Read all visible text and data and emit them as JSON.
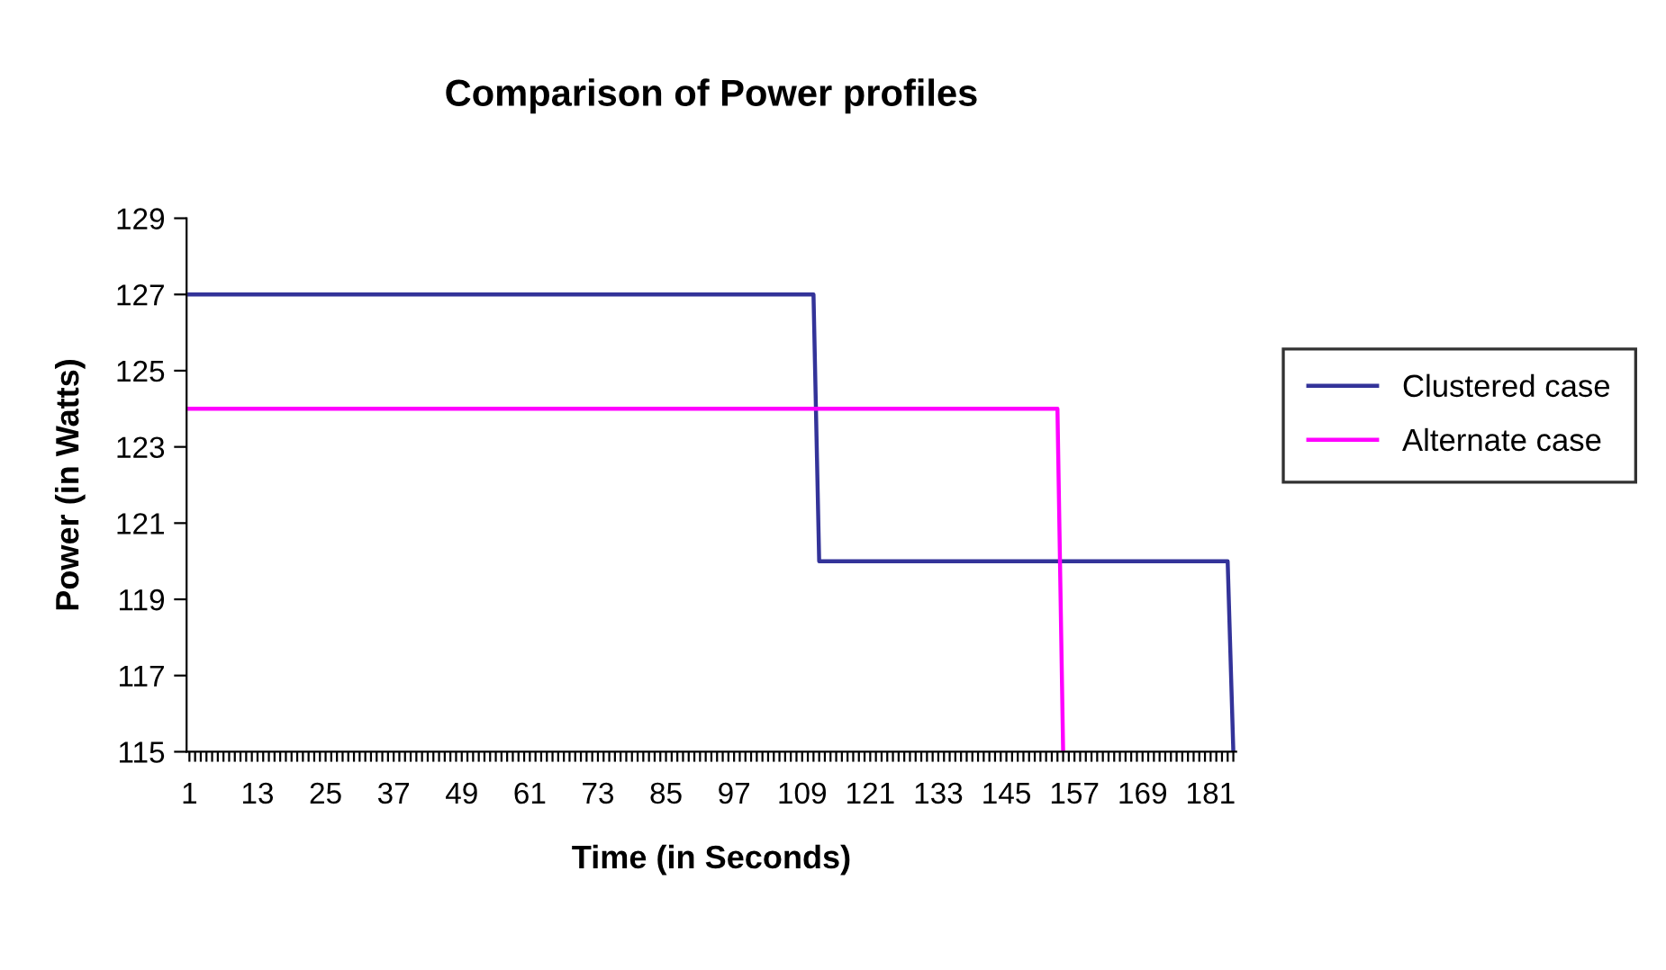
{
  "chart_data": {
    "type": "line",
    "title": "Comparison of Power profiles",
    "xlabel": "Time (in Seconds)",
    "ylabel": "Power (in Watts)",
    "series": [
      {
        "name": "Clustered case",
        "color": "#333399",
        "x": [
          1,
          111,
          112,
          184,
          185
        ],
        "values": [
          127,
          127,
          120,
          120,
          115
        ]
      },
      {
        "name": "Alternate case",
        "color": "#ff00ff",
        "x": [
          1,
          154,
          155
        ],
        "values": [
          124,
          124,
          115
        ]
      }
    ],
    "xlim": [
      0.5,
      185.5
    ],
    "ylim": [
      115,
      129
    ],
    "yticks": [
      115,
      117,
      119,
      121,
      123,
      125,
      127,
      129
    ],
    "xticks": [
      1,
      {
        "value": 2,
        "label": null
      },
      {
        "value": 3,
        "label": null
      },
      {
        "value": 4,
        "label": null
      },
      {
        "value": 5,
        "label": null
      },
      {
        "value": 6,
        "label": null
      },
      {
        "value": 7,
        "label": null
      },
      {
        "value": 8,
        "label": null
      },
      {
        "value": 9,
        "label": null
      },
      {
        "value": 10,
        "label": null
      },
      {
        "value": 11,
        "label": null
      },
      {
        "value": 12,
        "label": null
      },
      13,
      {
        "value": 14,
        "label": null
      },
      {
        "value": 15,
        "label": null
      },
      {
        "value": 16,
        "label": null
      },
      {
        "value": 17,
        "label": null
      },
      {
        "value": 18,
        "label": null
      },
      {
        "value": 19,
        "label": null
      },
      {
        "value": 20,
        "label": null
      },
      {
        "value": 21,
        "label": null
      },
      {
        "value": 22,
        "label": null
      },
      {
        "value": 23,
        "label": null
      },
      {
        "value": 24,
        "label": null
      },
      25,
      {
        "value": 26,
        "label": null
      },
      {
        "value": 27,
        "label": null
      },
      {
        "value": 28,
        "label": null
      },
      {
        "value": 29,
        "label": null
      },
      {
        "value": 30,
        "label": null
      },
      {
        "value": 31,
        "label": null
      },
      {
        "value": 32,
        "label": null
      },
      {
        "value": 33,
        "label": null
      },
      {
        "value": 34,
        "label": null
      },
      {
        "value": 35,
        "label": null
      },
      {
        "value": 36,
        "label": null
      },
      37,
      {
        "value": 38,
        "label": null
      },
      {
        "value": 39,
        "label": null
      },
      {
        "value": 40,
        "label": null
      },
      {
        "value": 41,
        "label": null
      },
      {
        "value": 42,
        "label": null
      },
      {
        "value": 43,
        "label": null
      },
      {
        "value": 44,
        "label": null
      },
      {
        "value": 45,
        "label": null
      },
      {
        "value": 46,
        "label": null
      },
      {
        "value": 47,
        "label": null
      },
      {
        "value": 48,
        "label": null
      },
      49,
      {
        "value": 50,
        "label": null
      },
      {
        "value": 51,
        "label": null
      },
      {
        "value": 52,
        "label": null
      },
      {
        "value": 53,
        "label": null
      },
      {
        "value": 54,
        "label": null
      },
      {
        "value": 55,
        "label": null
      },
      {
        "value": 56,
        "label": null
      },
      {
        "value": 57,
        "label": null
      },
      {
        "value": 58,
        "label": null
      },
      {
        "value": 59,
        "label": null
      },
      {
        "value": 60,
        "label": null
      },
      61,
      {
        "value": 62,
        "label": null
      },
      {
        "value": 63,
        "label": null
      },
      {
        "value": 64,
        "label": null
      },
      {
        "value": 65,
        "label": null
      },
      {
        "value": 66,
        "label": null
      },
      {
        "value": 67,
        "label": null
      },
      {
        "value": 68,
        "label": null
      },
      {
        "value": 69,
        "label": null
      },
      {
        "value": 70,
        "label": null
      },
      {
        "value": 71,
        "label": null
      },
      {
        "value": 72,
        "label": null
      },
      73,
      {
        "value": 74,
        "label": null
      },
      {
        "value": 75,
        "label": null
      },
      {
        "value": 76,
        "label": null
      },
      {
        "value": 77,
        "label": null
      },
      {
        "value": 78,
        "label": null
      },
      {
        "value": 79,
        "label": null
      },
      {
        "value": 80,
        "label": null
      },
      {
        "value": 81,
        "label": null
      },
      {
        "value": 82,
        "label": null
      },
      {
        "value": 83,
        "label": null
      },
      {
        "value": 84,
        "label": null
      },
      85,
      {
        "value": 86,
        "label": null
      },
      {
        "value": 87,
        "label": null
      },
      {
        "value": 88,
        "label": null
      },
      {
        "value": 89,
        "label": null
      },
      {
        "value": 90,
        "label": null
      },
      {
        "value": 91,
        "label": null
      },
      {
        "value": 92,
        "label": null
      },
      {
        "value": 93,
        "label": null
      },
      {
        "value": 94,
        "label": null
      },
      {
        "value": 95,
        "label": null
      },
      {
        "value": 96,
        "label": null
      },
      97,
      {
        "value": 98,
        "label": null
      },
      {
        "value": 99,
        "label": null
      },
      {
        "value": 100,
        "label": null
      },
      {
        "value": 101,
        "label": null
      },
      {
        "value": 102,
        "label": null
      },
      {
        "value": 103,
        "label": null
      },
      {
        "value": 104,
        "label": null
      },
      {
        "value": 105,
        "label": null
      },
      {
        "value": 106,
        "label": null
      },
      {
        "value": 107,
        "label": null
      },
      {
        "value": 108,
        "label": null
      },
      109,
      {
        "value": 110,
        "label": null
      },
      {
        "value": 111,
        "label": null
      },
      {
        "value": 112,
        "label": null
      },
      {
        "value": 113,
        "label": null
      },
      {
        "value": 114,
        "label": null
      },
      {
        "value": 115,
        "label": null
      },
      {
        "value": 116,
        "label": null
      },
      {
        "value": 117,
        "label": null
      },
      {
        "value": 118,
        "label": null
      },
      {
        "value": 119,
        "label": null
      },
      {
        "value": 120,
        "label": null
      },
      121,
      {
        "value": 122,
        "label": null
      },
      {
        "value": 123,
        "label": null
      },
      {
        "value": 124,
        "label": null
      },
      {
        "value": 125,
        "label": null
      },
      {
        "value": 126,
        "label": null
      },
      {
        "value": 127,
        "label": null
      },
      {
        "value": 128,
        "label": null
      },
      {
        "value": 129,
        "label": null
      },
      {
        "value": 130,
        "label": null
      },
      {
        "value": 131,
        "label": null
      },
      {
        "value": 132,
        "label": null
      },
      133,
      {
        "value": 134,
        "label": null
      },
      {
        "value": 135,
        "label": null
      },
      {
        "value": 136,
        "label": null
      },
      {
        "value": 137,
        "label": null
      },
      {
        "value": 138,
        "label": null
      },
      {
        "value": 139,
        "label": null
      },
      {
        "value": 140,
        "label": null
      },
      {
        "value": 141,
        "label": null
      },
      {
        "value": 142,
        "label": null
      },
      {
        "value": 143,
        "label": null
      },
      {
        "value": 144,
        "label": null
      },
      145,
      {
        "value": 146,
        "label": null
      },
      {
        "value": 147,
        "label": null
      },
      {
        "value": 148,
        "label": null
      },
      {
        "value": 149,
        "label": null
      },
      {
        "value": 150,
        "label": null
      },
      {
        "value": 151,
        "label": null
      },
      {
        "value": 152,
        "label": null
      },
      {
        "value": 153,
        "label": null
      },
      {
        "value": 154,
        "label": null
      },
      {
        "value": 155,
        "label": null
      },
      {
        "value": 156,
        "label": null
      },
      157,
      {
        "value": 158,
        "label": null
      },
      {
        "value": 159,
        "label": null
      },
      {
        "value": 160,
        "label": null
      },
      {
        "value": 161,
        "label": null
      },
      {
        "value": 162,
        "label": null
      },
      {
        "value": 163,
        "label": null
      },
      {
        "value": 164,
        "label": null
      },
      {
        "value": 165,
        "label": null
      },
      {
        "value": 166,
        "label": null
      },
      {
        "value": 167,
        "label": null
      },
      {
        "value": 168,
        "label": null
      },
      169,
      {
        "value": 170,
        "label": null
      },
      {
        "value": 171,
        "label": null
      },
      {
        "value": 172,
        "label": null
      },
      {
        "value": 173,
        "label": null
      },
      {
        "value": 174,
        "label": null
      },
      {
        "value": 175,
        "label": null
      },
      {
        "value": 176,
        "label": null
      },
      {
        "value": 177,
        "label": null
      },
      {
        "value": 178,
        "label": null
      },
      {
        "value": 179,
        "label": null
      },
      {
        "value": 180,
        "label": null
      },
      181,
      {
        "value": 182,
        "label": null
      },
      {
        "value": 183,
        "label": null
      },
      {
        "value": 184,
        "label": null
      },
      {
        "value": 185,
        "label": null
      }
    ],
    "grid": false,
    "legend": "right",
    "marker": "none",
    "line_style": "solid"
  }
}
